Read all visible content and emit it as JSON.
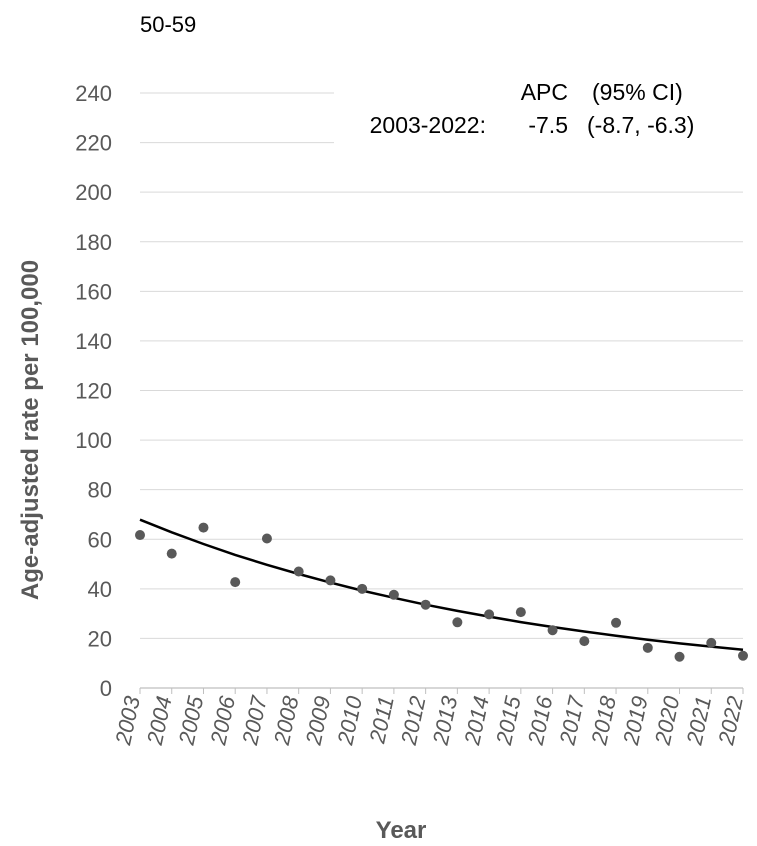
{
  "chart_data": {
    "type": "scatter",
    "panel_label": "50-59",
    "xlabel": "Year",
    "ylabel": "Age-adjusted rate per 100,000",
    "ylim": [
      0,
      240
    ],
    "yticks": [
      0,
      20,
      40,
      60,
      80,
      100,
      120,
      140,
      160,
      180,
      200,
      220,
      240
    ],
    "grid": true,
    "x": [
      2003,
      2004,
      2005,
      2006,
      2007,
      2008,
      2009,
      2010,
      2011,
      2012,
      2013,
      2014,
      2015,
      2016,
      2017,
      2018,
      2019,
      2020,
      2021,
      2022
    ],
    "xtick_labels": [
      "2003",
      "2004",
      "2005",
      "2006",
      "2007",
      "2008",
      "2009",
      "2010",
      "2011",
      "2012",
      "2013",
      "2014",
      "2015",
      "2016",
      "2017",
      "2018",
      "2019",
      "2020",
      "2021",
      "2022"
    ],
    "series": [
      {
        "type": "scatter",
        "color": "#595959",
        "values": [
          61.7,
          54.2,
          64.7,
          42.7,
          60.3,
          47.0,
          43.4,
          40.0,
          37.6,
          33.6,
          26.5,
          29.7,
          30.6,
          23.3,
          18.9,
          26.3,
          16.2,
          12.6,
          18.2,
          13.0
        ]
      },
      {
        "type": "line",
        "color": "#000000",
        "values": [
          67.9,
          62.8,
          58.1,
          53.7,
          49.7,
          46.0,
          42.5,
          39.3,
          36.4,
          33.6,
          31.1,
          28.8,
          26.6,
          24.6,
          22.8,
          21.1,
          19.5,
          18.0,
          16.7,
          15.4
        ]
      }
    ],
    "annotation": {
      "header_apc": "APC",
      "header_ci": "(95% CI)",
      "segment": "2003-2022:",
      "apc": "-7.5",
      "ci": "(-8.7, -6.3)"
    }
  }
}
